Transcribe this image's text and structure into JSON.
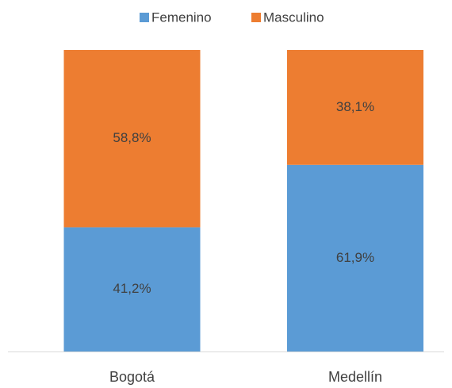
{
  "chart_data": {
    "type": "stacked_bar",
    "categories": [
      "Bogotá",
      "Medellín"
    ],
    "ylim": [
      0,
      100
    ],
    "series": [
      {
        "name": "Femenino",
        "color": "#5b9bd5",
        "values": [
          41.2,
          61.9
        ],
        "value_labels": [
          "41,2%",
          "61,9%"
        ]
      },
      {
        "name": "Masculino",
        "color": "#ed7d31",
        "values": [
          58.8,
          38.1
        ],
        "value_labels": [
          "58,8%",
          "38,1%"
        ]
      }
    ]
  }
}
